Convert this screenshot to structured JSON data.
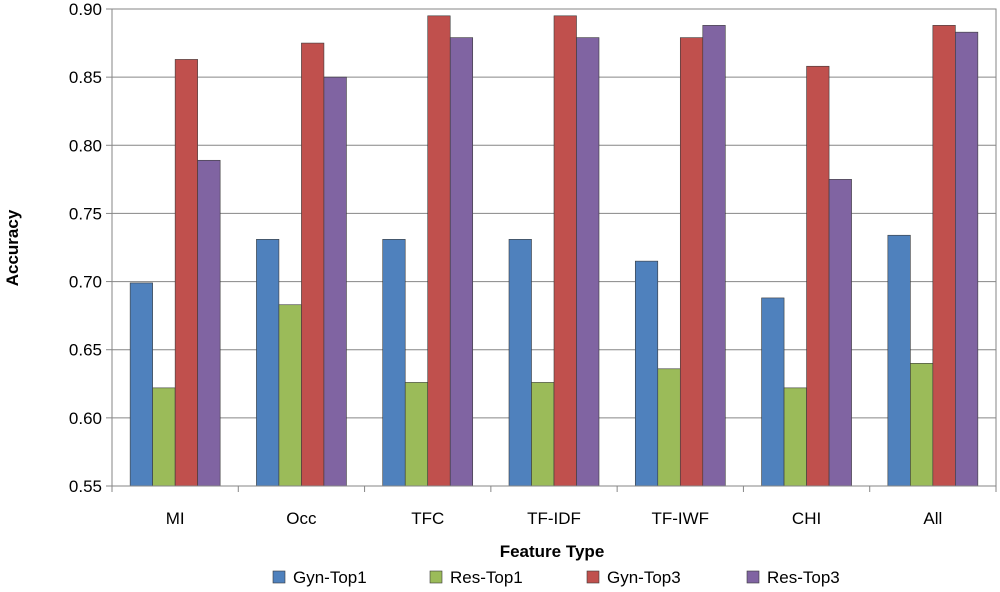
{
  "chart_data": {
    "type": "bar",
    "title": "",
    "xlabel": "Feature Type",
    "ylabel": "Accuracy",
    "categories": [
      "MI",
      "Occ",
      "TFC",
      "TF-IDF",
      "TF-IWF",
      "CHI",
      "All"
    ],
    "series": [
      {
        "name": "Gyn-Top1",
        "color": "#4F81BD",
        "values": [
          0.699,
          0.731,
          0.731,
          0.731,
          0.715,
          0.688,
          0.734
        ]
      },
      {
        "name": "Res-Top1",
        "color": "#9BBB59",
        "values": [
          0.622,
          0.683,
          0.626,
          0.626,
          0.636,
          0.622,
          0.64
        ]
      },
      {
        "name": "Gyn-Top3",
        "color": "#C0504D",
        "values": [
          0.863,
          0.875,
          0.895,
          0.895,
          0.879,
          0.858,
          0.888
        ]
      },
      {
        "name": "Res-Top3",
        "color": "#8064A2",
        "values": [
          0.789,
          0.85,
          0.879,
          0.879,
          0.888,
          0.775,
          0.883
        ]
      }
    ],
    "ylim": [
      0.55,
      0.9
    ],
    "yticks": [
      "0.55",
      "0.60",
      "0.65",
      "0.70",
      "0.75",
      "0.80",
      "0.85",
      "0.90"
    ],
    "grid": true,
    "legend_position": "bottom"
  }
}
